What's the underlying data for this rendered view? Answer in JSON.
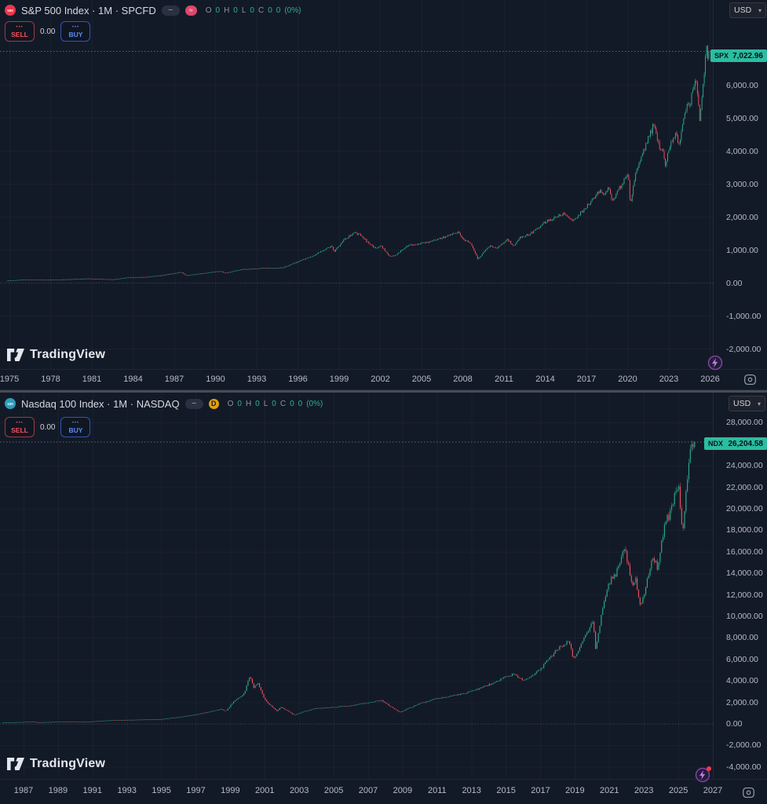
{
  "app": {
    "logo_text": "TradingView"
  },
  "colors": {
    "background": "#131a27",
    "up": "#2aab8e",
    "down": "#ef5060",
    "axis_text": "#b6bac4",
    "grid": "rgba(255,255,255,0.05)",
    "price_label_bg": "#2bbda0",
    "sell_red": "#f7525f",
    "buy_blue": "#5b8df6",
    "accent_purple": "#b06ae0"
  },
  "charts": [
    {
      "symbol_badge": "500",
      "title": "S&P 500 Index · 1M · SPCFD",
      "legend_toggle": "–",
      "status_badge": "≈",
      "ohlc": {
        "o_label": "O",
        "o_value": "0",
        "h_label": "H",
        "h_value": "0",
        "l_label": "L",
        "l_value": "0",
        "c_label": "C",
        "c_value": "0",
        "change_value": "0",
        "change_percent": "(0%)"
      },
      "trade": {
        "sell_label": "SELL",
        "spread": "0.00",
        "buy_label": "BUY",
        "menu_dots": "•••"
      },
      "currency": "USD",
      "price_label": {
        "symbol": "SPX",
        "price": "7,022.96"
      },
      "logo_text": "TradingView"
    },
    {
      "symbol_badge": "100",
      "title": "Nasdaq 100 Index · 1M · NASDAQ",
      "legend_toggle": "–",
      "status_badge": "D",
      "ohlc": {
        "o_label": "O",
        "o_value": "0",
        "h_label": "H",
        "h_value": "0",
        "l_label": "L",
        "l_value": "0",
        "c_label": "C",
        "c_value": "0",
        "change_value": "0",
        "change_percent": "(0%)"
      },
      "trade": {
        "sell_label": "SELL",
        "spread": "0.00",
        "buy_label": "BUY",
        "menu_dots": "•••"
      },
      "currency": "USD",
      "price_label": {
        "symbol": "NDX",
        "price": "26,204.58"
      },
      "logo_text": "TradingView"
    }
  ],
  "chart_data": [
    {
      "type": "candlestick",
      "title": "S&P 500 Index",
      "symbol": "SPX",
      "interval": "1M",
      "exchange": "SPCFD",
      "currency": "USD",
      "last_price": 7022.96,
      "ylim": [
        -2400,
        7600
      ],
      "x_tick_years": [
        1975,
        1978,
        1981,
        1984,
        1987,
        1990,
        1993,
        1996,
        1999,
        2002,
        2005,
        2008,
        2011,
        2014,
        2017,
        2020,
        2023,
        2026
      ],
      "y_ticks": [
        {
          "value": 6000,
          "label": "6,000.00"
        },
        {
          "value": 5000,
          "label": "5,000.00"
        },
        {
          "value": 4000,
          "label": "4,000.00"
        },
        {
          "value": 3000,
          "label": "3,000.00"
        },
        {
          "value": 2000,
          "label": "2,000.00"
        },
        {
          "value": 1000,
          "label": "1,000.00"
        },
        {
          "value": 0,
          "label": "0.00"
        },
        {
          "value": -1000,
          "label": "-1,000.00"
        },
        {
          "value": -2000,
          "label": "-2,000.00"
        }
      ],
      "zero_line_value": 0,
      "series_anchors": [
        [
          1974.8,
          68
        ],
        [
          1976,
          100
        ],
        [
          1978,
          96
        ],
        [
          1980.9,
          135
        ],
        [
          1982.6,
          108
        ],
        [
          1983.6,
          165
        ],
        [
          1985,
          182
        ],
        [
          1986.2,
          238
        ],
        [
          1987.6,
          330
        ],
        [
          1987.9,
          228
        ],
        [
          1988.5,
          262
        ],
        [
          1990.4,
          362
        ],
        [
          1990.8,
          306
        ],
        [
          1992,
          415
        ],
        [
          1993.5,
          450
        ],
        [
          1994.3,
          445
        ],
        [
          1995,
          465
        ],
        [
          1996,
          640
        ],
        [
          1997,
          790
        ],
        [
          1998.5,
          1120
        ],
        [
          1998.7,
          960
        ],
        [
          1999.5,
          1350
        ],
        [
          2000.2,
          1520
        ],
        [
          2000.7,
          1440
        ],
        [
          2001.1,
          1240
        ],
        [
          2001.7,
          1050
        ],
        [
          2002.1,
          1130
        ],
        [
          2002.75,
          800
        ],
        [
          2003.2,
          850
        ],
        [
          2004,
          1130
        ],
        [
          2005,
          1200
        ],
        [
          2006,
          1290
        ],
        [
          2007.75,
          1550
        ],
        [
          2008.1,
          1330
        ],
        [
          2008.65,
          1220
        ],
        [
          2009.15,
          720
        ],
        [
          2010,
          1130
        ],
        [
          2010.5,
          1040
        ],
        [
          2011.3,
          1330
        ],
        [
          2011.75,
          1120
        ],
        [
          2012.2,
          1370
        ],
        [
          2013,
          1500
        ],
        [
          2014,
          1840
        ],
        [
          2015.4,
          2110
        ],
        [
          2016.1,
          1900
        ],
        [
          2017,
          2280
        ],
        [
          2018.05,
          2820
        ],
        [
          2018.3,
          2650
        ],
        [
          2018.7,
          2900
        ],
        [
          2018.95,
          2480
        ],
        [
          2019.6,
          2980
        ],
        [
          2020.1,
          3330
        ],
        [
          2020.25,
          2350
        ],
        [
          2020.7,
          3450
        ],
        [
          2021.5,
          4350
        ],
        [
          2021.95,
          4780
        ],
        [
          2022.4,
          4100
        ],
        [
          2022.55,
          4150
        ],
        [
          2022.8,
          3600
        ],
        [
          2023.1,
          4100
        ],
        [
          2023.55,
          4550
        ],
        [
          2023.8,
          4180
        ],
        [
          2024.2,
          5250
        ],
        [
          2024.6,
          5450
        ],
        [
          2024.95,
          6050
        ],
        [
          2025.1,
          5950
        ],
        [
          2025.3,
          5000
        ],
        [
          2025.55,
          6150
        ],
        [
          2025.7,
          6700
        ],
        [
          2025.78,
          7300
        ],
        [
          2025.85,
          6800
        ],
        [
          2025.92,
          7022.96
        ]
      ]
    },
    {
      "type": "candlestick",
      "title": "Nasdaq 100 Index",
      "symbol": "NDX",
      "interval": "1M",
      "exchange": "NASDAQ",
      "currency": "USD",
      "last_price": 26204.58,
      "ylim": [
        -5200,
        30800
      ],
      "x_tick_years": [
        1987,
        1989,
        1991,
        1993,
        1995,
        1997,
        1999,
        2001,
        2003,
        2005,
        2007,
        2009,
        2011,
        2013,
        2015,
        2017,
        2019,
        2021,
        2023,
        2025,
        2027
      ],
      "y_ticks": [
        {
          "value": 28000,
          "label": "28,000.00"
        },
        {
          "value": 24000,
          "label": "24,000.00"
        },
        {
          "value": 22000,
          "label": "22,000.00"
        },
        {
          "value": 20000,
          "label": "20,000.00"
        },
        {
          "value": 18000,
          "label": "18,000.00"
        },
        {
          "value": 16000,
          "label": "16,000.00"
        },
        {
          "value": 14000,
          "label": "14,000.00"
        },
        {
          "value": 12000,
          "label": "12,000.00"
        },
        {
          "value": 10000,
          "label": "10,000.00"
        },
        {
          "value": 8000,
          "label": "8,000.00"
        },
        {
          "value": 6000,
          "label": "6,000.00"
        },
        {
          "value": 4000,
          "label": "4,000.00"
        },
        {
          "value": 2000,
          "label": "2,000.00"
        },
        {
          "value": 0,
          "label": "0.00"
        },
        {
          "value": -2000,
          "label": "-2,000.00"
        },
        {
          "value": -4000,
          "label": "-4,000.00"
        }
      ],
      "zero_line_value": 0,
      "series_anchors": [
        [
          1985.75,
          110
        ],
        [
          1987.6,
          205
        ],
        [
          1987.9,
          142
        ],
        [
          1989.2,
          210
        ],
        [
          1990.6,
          185
        ],
        [
          1992,
          330
        ],
        [
          1994,
          400
        ],
        [
          1995,
          430
        ],
        [
          1996,
          620
        ],
        [
          1997,
          850
        ],
        [
          1998.5,
          1350
        ],
        [
          1998.8,
          1180
        ],
        [
          1999.2,
          2000
        ],
        [
          1999.85,
          2800
        ],
        [
          2000.2,
          4550
        ],
        [
          2000.4,
          3300
        ],
        [
          2000.65,
          3900
        ],
        [
          2001.05,
          2250
        ],
        [
          2001.4,
          1700
        ],
        [
          2001.75,
          1180
        ],
        [
          2002.0,
          1580
        ],
        [
          2002.75,
          830
        ],
        [
          2003.5,
          1230
        ],
        [
          2004.1,
          1480
        ],
        [
          2005,
          1550
        ],
        [
          2006.1,
          1700
        ],
        [
          2007.8,
          2200
        ],
        [
          2008.2,
          1780
        ],
        [
          2008.88,
          1080
        ],
        [
          2009.9,
          1800
        ],
        [
          2011,
          2350
        ],
        [
          2012.2,
          2700
        ],
        [
          2013,
          3000
        ],
        [
          2014,
          3600
        ],
        [
          2015.5,
          4650
        ],
        [
          2016.1,
          4050
        ],
        [
          2017,
          5000
        ],
        [
          2018.05,
          7000
        ],
        [
          2018.7,
          7650
        ],
        [
          2018.97,
          6000
        ],
        [
          2019.6,
          8000
        ],
        [
          2020.1,
          9600
        ],
        [
          2020.25,
          6900
        ],
        [
          2020.7,
          11200
        ],
        [
          2021.1,
          13300
        ],
        [
          2021.45,
          14000
        ],
        [
          2021.9,
          16600
        ],
        [
          2022.4,
          12800
        ],
        [
          2022.6,
          13500
        ],
        [
          2022.85,
          10700
        ],
        [
          2023.2,
          13000
        ],
        [
          2023.55,
          15800
        ],
        [
          2023.85,
          14500
        ],
        [
          2024.25,
          18300
        ],
        [
          2024.6,
          19800
        ],
        [
          2024.95,
          22000
        ],
        [
          2025.1,
          21600
        ],
        [
          2025.3,
          17300
        ],
        [
          2025.55,
          22500
        ],
        [
          2025.72,
          24500
        ],
        [
          2025.8,
          26300
        ],
        [
          2025.87,
          25000
        ],
        [
          2025.92,
          26204.58
        ]
      ]
    }
  ]
}
